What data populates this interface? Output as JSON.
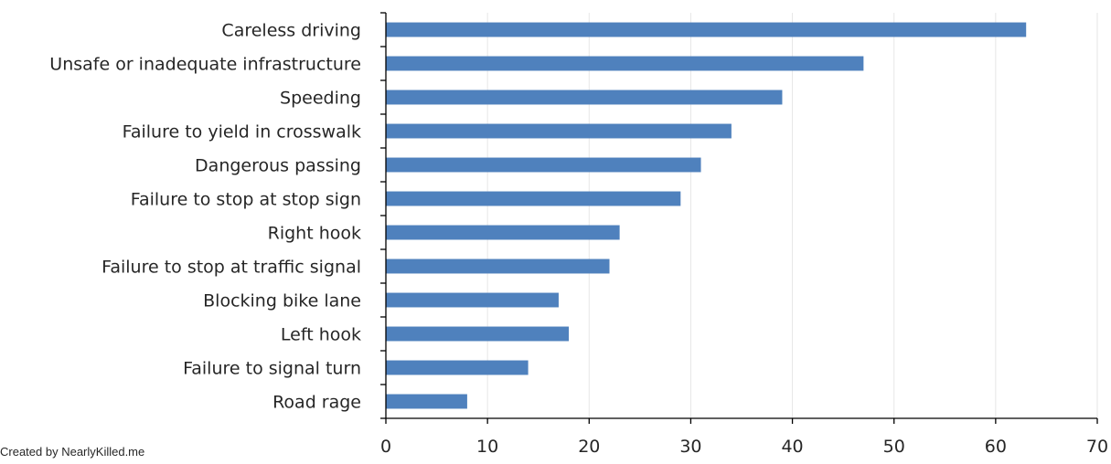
{
  "chart_data": {
    "type": "bar",
    "orientation": "horizontal",
    "categories": [
      "Careless driving",
      "Unsafe or inadequate infrastructure",
      "Speeding",
      "Failure to yield in crosswalk",
      "Dangerous passing",
      "Failure to stop at stop sign",
      "Right hook",
      "Failure to stop at traffic signal",
      "Blocking bike lane",
      "Left hook",
      "Failure to signal turn",
      "Road rage"
    ],
    "values": [
      63,
      47,
      39,
      34,
      31,
      29,
      23,
      22,
      17,
      18,
      14,
      8
    ],
    "xlim": [
      0,
      70
    ],
    "xticks": [
      0,
      10,
      20,
      30,
      40,
      50,
      60,
      70
    ],
    "title": "",
    "xlabel": "",
    "ylabel": "",
    "grid": "vertical",
    "legend": "none",
    "bar_color": "#4f81bd",
    "grid_color": "#e6e6e6",
    "axis_color": "#000000"
  },
  "footer": {
    "credit": "Created by NearlyKilled.me"
  }
}
